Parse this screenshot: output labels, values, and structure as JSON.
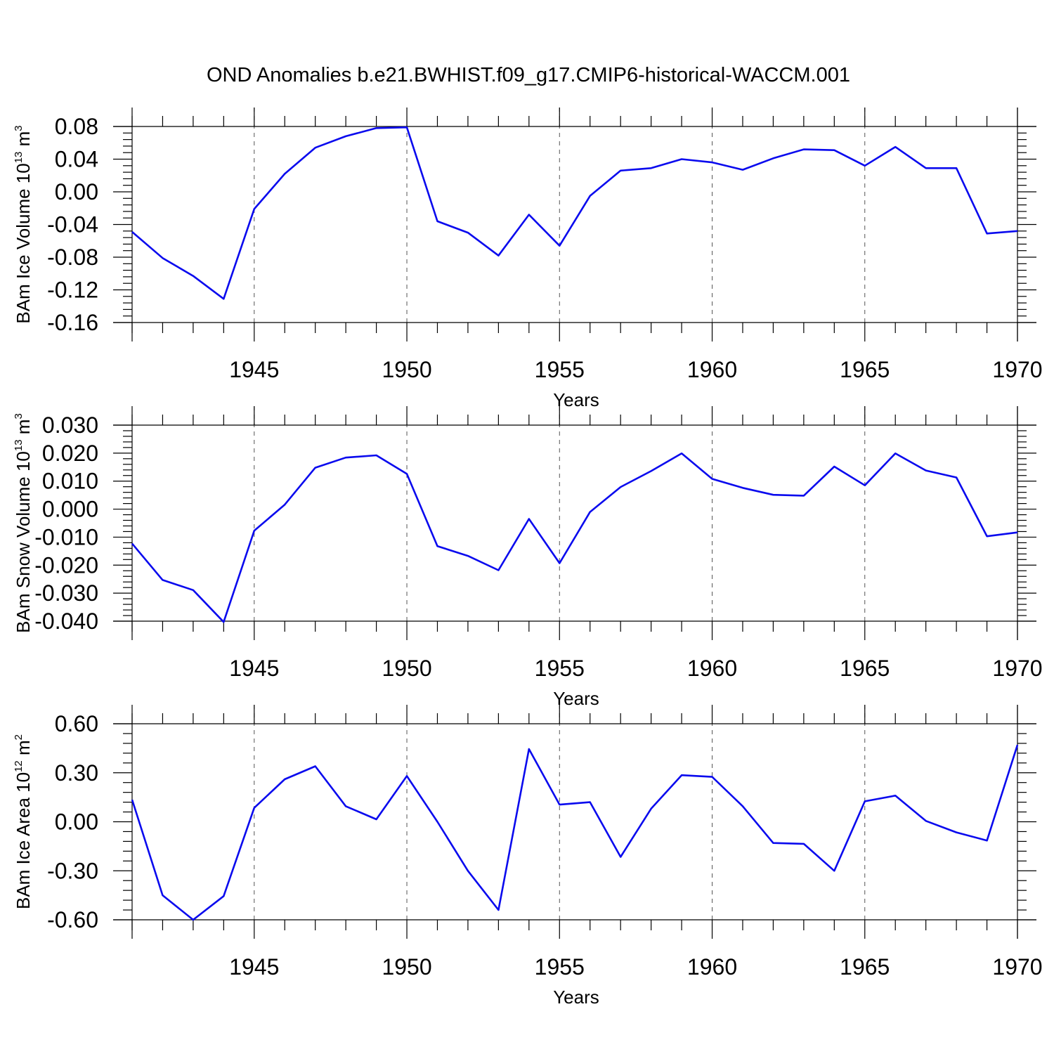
{
  "title": "OND Anomalies b.e21.BWHIST.f09_g17.CMIP6-historical-WACCM.001",
  "line_color": "#0a0aee",
  "chart_data": [
    {
      "type": "line",
      "name": "ice-volume",
      "ylabel": {
        "main": "BAm Ice Volume 10",
        "exp": "13",
        "unit": " m",
        "unit_exp": "3"
      },
      "xlabel": "Years",
      "xlim": [
        1941,
        1970
      ],
      "ylim": [
        -0.16,
        0.08
      ],
      "x_ticks": [
        "1945",
        "1950",
        "1955",
        "1960",
        "1965",
        "1970"
      ],
      "y_ticks": [
        "0.08",
        "0.04",
        "0.00",
        "-0.04",
        "-0.08",
        "-0.12",
        "-0.16"
      ],
      "y_tick_values": [
        0.08,
        0.04,
        0.0,
        -0.04,
        -0.08,
        -0.12,
        -0.16
      ],
      "x": [
        1941,
        1942,
        1943,
        1944,
        1945,
        1946,
        1947,
        1948,
        1949,
        1950,
        1951,
        1952,
        1953,
        1954,
        1955,
        1956,
        1957,
        1958,
        1959,
        1960,
        1961,
        1962,
        1963,
        1964,
        1965,
        1966,
        1967,
        1968,
        1969,
        1970
      ],
      "values": [
        -0.049,
        -0.081,
        -0.103,
        -0.131,
        -0.021,
        0.022,
        0.054,
        0.068,
        0.078,
        0.079,
        -0.036,
        -0.05,
        -0.078,
        -0.028,
        -0.066,
        -0.005,
        0.026,
        0.029,
        0.04,
        0.036,
        0.027,
        0.041,
        0.052,
        0.051,
        0.032,
        0.055,
        0.029,
        0.029,
        -0.051,
        -0.048
      ]
    },
    {
      "type": "line",
      "name": "snow-volume",
      "ylabel": {
        "main": "BAm Snow Volume 10",
        "exp": "13",
        "unit": " m",
        "unit_exp": "3"
      },
      "xlabel": "Years",
      "xlim": [
        1941,
        1970
      ],
      "ylim": [
        -0.04,
        0.03
      ],
      "x_ticks": [
        "1945",
        "1950",
        "1955",
        "1960",
        "1965",
        "1970"
      ],
      "y_ticks": [
        "0.030",
        "0.020",
        "0.010",
        "0.000",
        "-0.010",
        "-0.020",
        "-0.030",
        "-0.040"
      ],
      "y_tick_values": [
        0.03,
        0.02,
        0.01,
        0.0,
        -0.01,
        -0.02,
        -0.03,
        -0.04
      ],
      "x": [
        1941,
        1942,
        1943,
        1944,
        1945,
        1946,
        1947,
        1948,
        1949,
        1950,
        1951,
        1952,
        1953,
        1954,
        1955,
        1956,
        1957,
        1958,
        1959,
        1960,
        1961,
        1962,
        1963,
        1964,
        1965,
        1966,
        1967,
        1968,
        1969,
        1970
      ],
      "values": [
        -0.0123,
        -0.0253,
        -0.0289,
        -0.0403,
        -0.0077,
        0.0016,
        0.0148,
        0.0184,
        0.0192,
        0.0126,
        -0.0132,
        -0.0167,
        -0.0218,
        -0.0035,
        -0.0193,
        -0.001,
        0.0079,
        0.0136,
        0.0199,
        0.0108,
        0.0076,
        0.0051,
        0.0048,
        0.0152,
        0.0085,
        0.0199,
        0.0138,
        0.0113,
        -0.0097,
        -0.0083
      ]
    },
    {
      "type": "line",
      "name": "ice-area",
      "ylabel": {
        "main": "BAm Ice Area 10",
        "exp": "12",
        "unit": " m",
        "unit_exp": "2"
      },
      "xlabel": "Years",
      "xlim": [
        1941,
        1970
      ],
      "ylim": [
        -0.6,
        0.6
      ],
      "x_ticks": [
        "1945",
        "1950",
        "1955",
        "1960",
        "1965",
        "1970"
      ],
      "y_ticks": [
        "0.60",
        "0.30",
        "0.00",
        "-0.30",
        "-0.60"
      ],
      "y_tick_values": [
        0.6,
        0.3,
        0.0,
        -0.3,
        -0.6
      ],
      "x": [
        1941,
        1942,
        1943,
        1944,
        1945,
        1946,
        1947,
        1948,
        1949,
        1950,
        1951,
        1952,
        1953,
        1954,
        1955,
        1956,
        1957,
        1958,
        1959,
        1960,
        1961,
        1962,
        1963,
        1964,
        1965,
        1966,
        1967,
        1968,
        1969,
        1970
      ],
      "values": [
        0.135,
        -0.45,
        -0.6,
        -0.455,
        0.085,
        0.26,
        0.34,
        0.095,
        0.015,
        0.28,
        0.0,
        -0.3,
        -0.54,
        0.445,
        0.105,
        0.12,
        -0.215,
        0.08,
        0.285,
        0.275,
        0.095,
        -0.13,
        -0.135,
        -0.3,
        0.125,
        0.16,
        0.005,
        -0.065,
        -0.115,
        0.47
      ]
    }
  ]
}
